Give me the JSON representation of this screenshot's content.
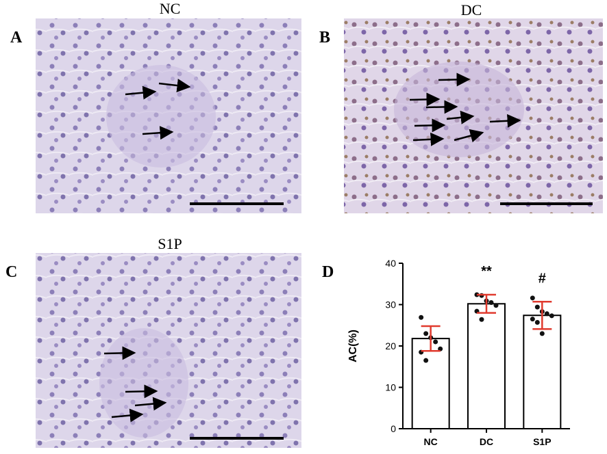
{
  "panels": [
    {
      "letter": "A",
      "title": "NC"
    },
    {
      "letter": "B",
      "title": "DC"
    },
    {
      "letter": "C",
      "title": "S1P"
    }
  ],
  "chart_data": {
    "type": "bar",
    "letter": "D",
    "ylabel": "AC(%)",
    "categories": [
      "NC",
      "DC",
      "S1P"
    ],
    "values": [
      21.8,
      30.2,
      27.4
    ],
    "errors": [
      3.0,
      2.2,
      3.3
    ],
    "points": [
      [
        26.9,
        23.0,
        22.0,
        21.0,
        19.3,
        18.5,
        16.5
      ],
      [
        32.4,
        32.2,
        30.9,
        30.5,
        29.8,
        28.4,
        26.4
      ],
      [
        31.6,
        29.4,
        28.3,
        27.8,
        27.3,
        26.5,
        25.7,
        23.0
      ]
    ],
    "annotations": [
      null,
      "**",
      "#"
    ],
    "color": "#ffffff",
    "error_color": "#e03a2e",
    "point_color": "#111111",
    "ylim": [
      0,
      40
    ],
    "yticks": [
      0,
      10,
      20,
      30,
      40
    ]
  }
}
